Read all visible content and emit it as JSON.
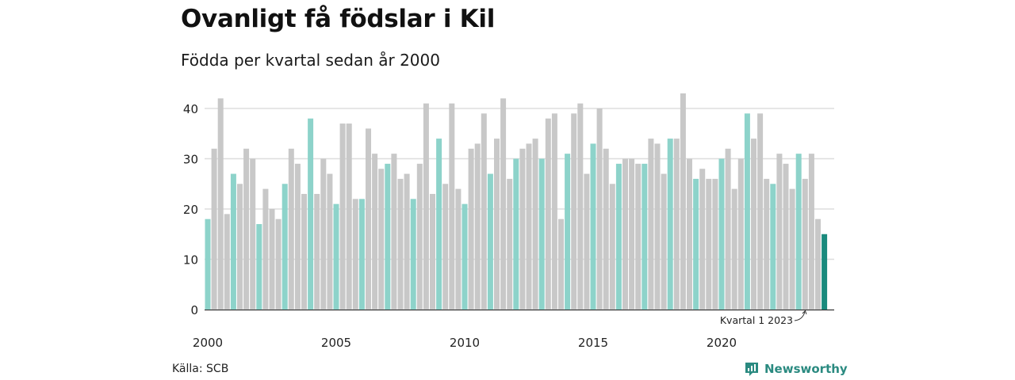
{
  "header": {
    "title": "Ovanligt få födslar i Kil",
    "subtitle": "Födda per kvartal sedan år 2000"
  },
  "footer": {
    "source": "Källa: SCB",
    "brand": "Newsworthy"
  },
  "colors": {
    "q1": "#8dd3ca",
    "other": "#c8c8c8",
    "highlight": "#1a8a7d",
    "brand": "#2a8a80",
    "grid": "#dddddd"
  },
  "chart_data": {
    "type": "bar",
    "title": "Ovanligt få födslar i Kil",
    "subtitle": "Födda per kvartal sedan år 2000",
    "start_year": 2000,
    "start_quarter": 1,
    "values": [
      18,
      32,
      42,
      19,
      27,
      25,
      32,
      30,
      17,
      24,
      20,
      18,
      25,
      32,
      29,
      23,
      38,
      23,
      30,
      27,
      21,
      37,
      37,
      22,
      22,
      36,
      31,
      28,
      29,
      31,
      26,
      27,
      22,
      29,
      41,
      23,
      34,
      25,
      41,
      24,
      21,
      32,
      33,
      39,
      27,
      34,
      42,
      26,
      30,
      32,
      33,
      34,
      30,
      38,
      39,
      18,
      31,
      39,
      41,
      27,
      33,
      40,
      32,
      25,
      29,
      30,
      30,
      29,
      29,
      34,
      33,
      27,
      34,
      34,
      43,
      30,
      26,
      28,
      26,
      26,
      30,
      32,
      24,
      30,
      39,
      34,
      39,
      26,
      25,
      31,
      29,
      24,
      31,
      26,
      31,
      18,
      15
    ],
    "ylim": [
      0,
      45
    ],
    "yticks": [
      0,
      10,
      20,
      30,
      40
    ],
    "xticks": [
      "2000",
      "2005",
      "2010",
      "2015",
      "2020"
    ],
    "annotation": "Kvartal 1 2023",
    "grid": true,
    "legend": "none"
  }
}
